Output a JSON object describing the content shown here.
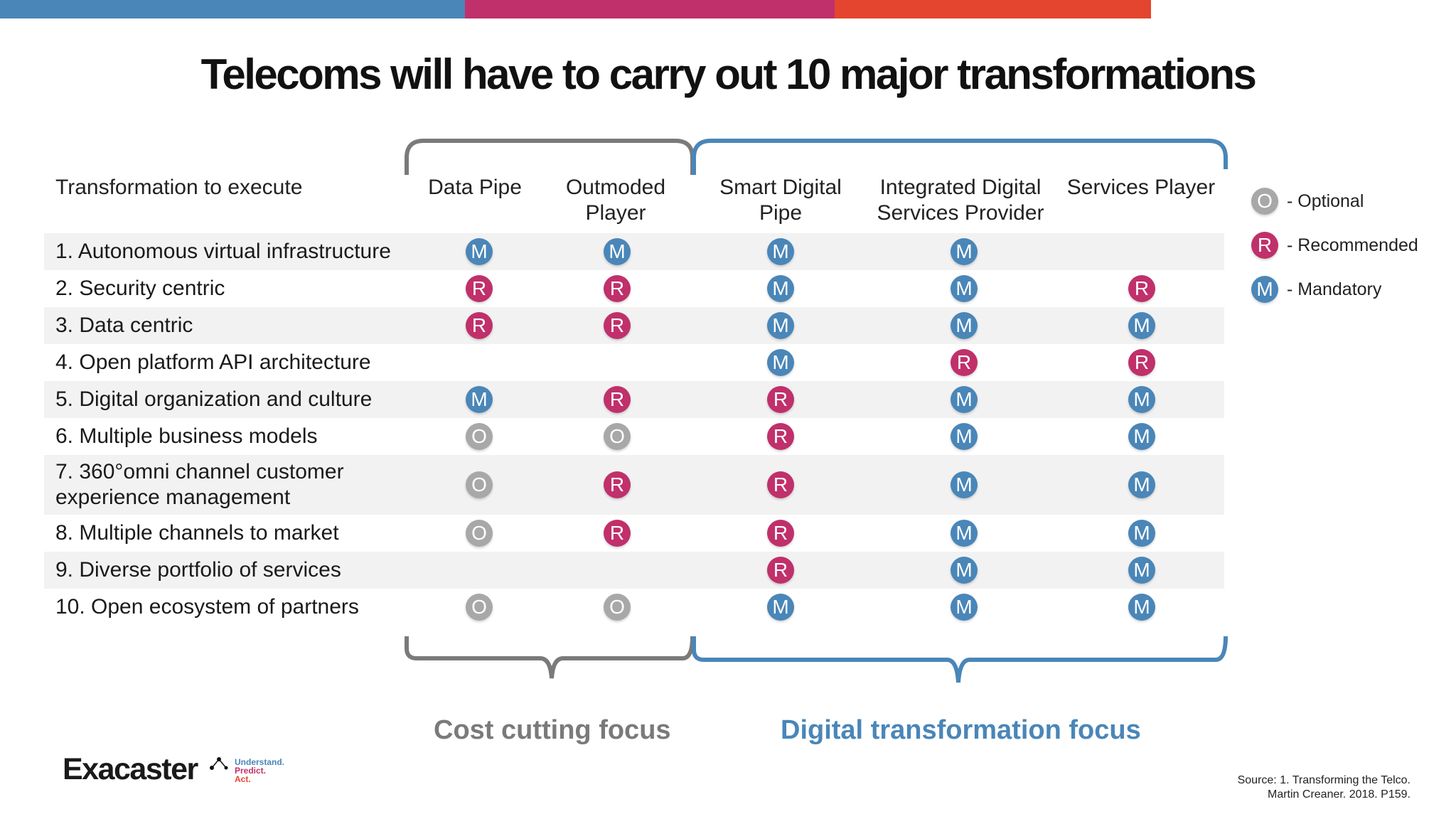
{
  "title": "Telecoms will have to carry out 10 major transformations",
  "colors": {
    "blue": "#4a86b8",
    "pink": "#c0306b",
    "red": "#e3452f",
    "optional": "#a8a8a8",
    "recommended": "#c0306b",
    "mandatory": "#4a86b8",
    "gray_brace": "#7a7a7a"
  },
  "columns": {
    "first": "Transformation to execute",
    "data_pipe": "Data Pipe",
    "outmoded": [
      "Outmoded",
      "Player"
    ],
    "smart": [
      "Smart Digital",
      "Pipe"
    ],
    "integrated": [
      "Integrated Digital",
      "Services Provider"
    ],
    "services": "Services Player"
  },
  "rows": [
    {
      "label": [
        "1. Autonomous virtual infrastructure"
      ],
      "values": [
        "M",
        "M",
        "M",
        "M",
        ""
      ]
    },
    {
      "label": [
        "2. Security centric"
      ],
      "values": [
        "R",
        "R",
        "M",
        "M",
        "R"
      ]
    },
    {
      "label": [
        "3. Data centric"
      ],
      "values": [
        "R",
        "R",
        "M",
        "M",
        "M"
      ]
    },
    {
      "label": [
        "4. Open platform API architecture"
      ],
      "values": [
        "",
        "",
        "M",
        "R",
        "R"
      ]
    },
    {
      "label": [
        "5. Digital organization and culture"
      ],
      "values": [
        "M",
        "R",
        "R",
        "M",
        "M"
      ]
    },
    {
      "label": [
        "6. Multiple business models"
      ],
      "values": [
        "O",
        "O",
        "R",
        "M",
        "M"
      ]
    },
    {
      "label": [
        "7. 360°omni channel customer",
        "experience management"
      ],
      "values": [
        "O",
        "R",
        "R",
        "M",
        "M"
      ]
    },
    {
      "label": [
        "8. Multiple channels to market"
      ],
      "values": [
        "O",
        "R",
        "R",
        "M",
        "M"
      ]
    },
    {
      "label": [
        "9. Diverse portfolio of services"
      ],
      "values": [
        "",
        "",
        "R",
        "M",
        "M"
      ]
    },
    {
      "label": [
        "10. Open ecosystem of partners"
      ],
      "values": [
        "O",
        "O",
        "M",
        "M",
        "M"
      ]
    }
  ],
  "legend": [
    {
      "letter": "O",
      "text": "- Optional"
    },
    {
      "letter": "R",
      "text": "- Recommended"
    },
    {
      "letter": "M",
      "text": "- Mandatory"
    }
  ],
  "focus": {
    "cost": "Cost cutting focus",
    "digital": "Digital transformation focus"
  },
  "logo": {
    "name": "Exacaster",
    "tagline": [
      "Understand.",
      "Predict.",
      "Act."
    ]
  },
  "source": [
    "Source: 1. Transforming the Telco.",
    "Martin Creaner. 2018. P159."
  ]
}
